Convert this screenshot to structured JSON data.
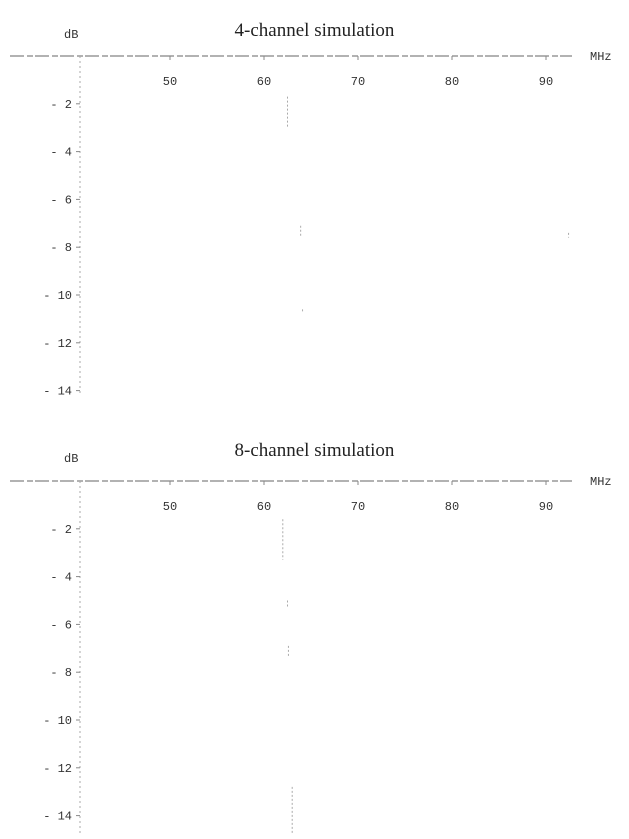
{
  "chart_data": [
    {
      "type": "line",
      "title": "4-channel simulation",
      "xlabel": "MHz",
      "ylabel": "dB",
      "xlim": [
        40,
        95
      ],
      "ylim": [
        -14.5,
        0
      ],
      "x_ticks": [
        "50",
        "60",
        "70",
        "80",
        "90"
      ],
      "y_ticks": [
        "-2",
        "-4",
        "-6",
        "-8",
        "-10",
        "-12",
        "-14"
      ],
      "grid": false,
      "series": [
        {
          "x": [
            62.5,
            62.5
          ],
          "y": [
            -1.7,
            -3.0
          ]
        },
        {
          "x": [
            63.9,
            63.9
          ],
          "y": [
            -7.1,
            -7.6
          ]
        },
        {
          "x": [
            64.1,
            64.1
          ],
          "y": [
            -10.6,
            -10.7
          ]
        },
        {
          "x": [
            92.4,
            92.4
          ],
          "y": [
            -7.4,
            -7.6
          ]
        }
      ]
    },
    {
      "type": "line",
      "title": "8-channel simulation",
      "xlabel": "MHz",
      "ylabel": "dB",
      "xlim": [
        40,
        95
      ],
      "ylim": [
        -14.5,
        0
      ],
      "x_ticks": [
        "50",
        "60",
        "70",
        "80",
        "90"
      ],
      "y_ticks": [
        "-2",
        "-4",
        "-6",
        "-8",
        "-10",
        "-12",
        "-14"
      ],
      "grid": false,
      "series": [
        {
          "x": [
            62.0,
            62.0
          ],
          "y": [
            -1.6,
            -3.3
          ]
        },
        {
          "x": [
            62.5,
            62.5
          ],
          "y": [
            -5.0,
            -5.3
          ]
        },
        {
          "x": [
            62.6,
            62.6
          ],
          "y": [
            -6.9,
            -7.4
          ]
        },
        {
          "x": [
            63.0,
            63.0
          ],
          "y": [
            -12.8,
            -14.8
          ]
        }
      ]
    }
  ]
}
